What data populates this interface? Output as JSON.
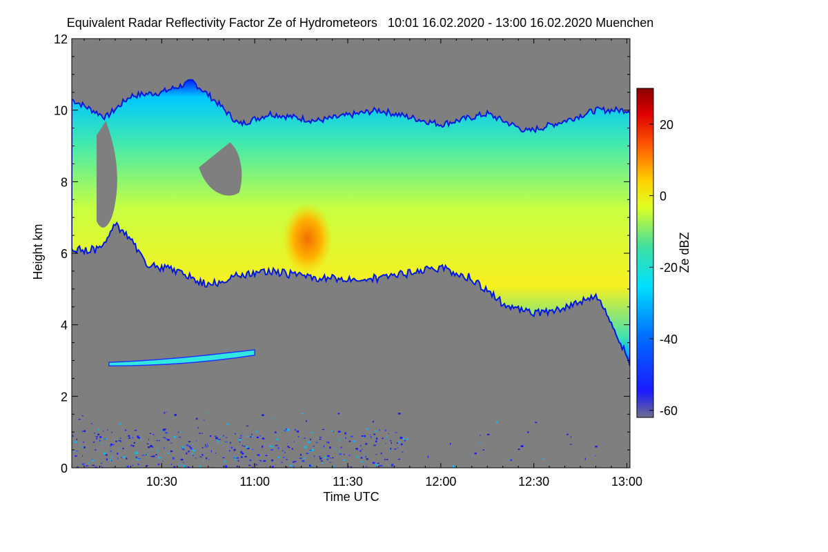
{
  "chart_data": {
    "type": "heatmap",
    "title": "Equivalent Radar Reflectivity Factor Ze of Hydrometeors   10:01 16.02.2020 - 13:00 16.02.2020 Muenchen",
    "xlabel": "Time UTC",
    "ylabel": "Height km",
    "xlim_minutes": [
      601,
      781
    ],
    "ylim": [
      0,
      12
    ],
    "x_ticks": [
      {
        "value": 630,
        "label": "10:30"
      },
      {
        "value": 660,
        "label": "11:00"
      },
      {
        "value": 690,
        "label": "11:30"
      },
      {
        "value": 720,
        "label": "12:00"
      },
      {
        "value": 750,
        "label": "12:30"
      },
      {
        "value": 780,
        "label": "13:00"
      }
    ],
    "y_ticks": [
      {
        "value": 0,
        "label": "0"
      },
      {
        "value": 2,
        "label": "2"
      },
      {
        "value": 4,
        "label": "4"
      },
      {
        "value": 6,
        "label": "6"
      },
      {
        "value": 8,
        "label": "8"
      },
      {
        "value": 10,
        "label": "10"
      },
      {
        "value": 12,
        "label": "12"
      }
    ],
    "background_color": "#7f7f7f",
    "colorbar": {
      "label": "Ze dBZ",
      "range": [
        -62,
        30
      ],
      "ticks": [
        {
          "value": 20,
          "label": "20"
        },
        {
          "value": 0,
          "label": "0"
        },
        {
          "value": -20,
          "label": "-20"
        },
        {
          "value": -40,
          "label": "-40"
        },
        {
          "value": -60,
          "label": "-60"
        }
      ],
      "colors": [
        "#6e6e8c",
        "#1a1aff",
        "#0060ff",
        "#00d8ff",
        "#40e0a0",
        "#e0ff20",
        "#ffd000",
        "#ff6000",
        "#e00000",
        "#8b0000"
      ]
    },
    "cloud_layer": {
      "description_values": "upper cloud band approx. 5.5-10.5 km, Ze mostly -30 to 0 dBZ, max ~5 dBZ near 11:15-11:20 at ~6 km",
      "top_km": [
        [
          601,
          10.3
        ],
        [
          612,
          9.8
        ],
        [
          620,
          10.4
        ],
        [
          630,
          10.5
        ],
        [
          640,
          10.8
        ],
        [
          648,
          10.2
        ],
        [
          655,
          9.6
        ],
        [
          665,
          9.9
        ],
        [
          680,
          9.7
        ],
        [
          700,
          10.0
        ],
        [
          720,
          9.6
        ],
        [
          735,
          9.9
        ],
        [
          748,
          9.4
        ],
        [
          760,
          9.7
        ],
        [
          770,
          10.0
        ],
        [
          781,
          10.0
        ]
      ],
      "base_km": [
        [
          601,
          6.1
        ],
        [
          610,
          6.1
        ],
        [
          615,
          6.8
        ],
        [
          620,
          6.4
        ],
        [
          625,
          5.7
        ],
        [
          635,
          5.5
        ],
        [
          645,
          5.1
        ],
        [
          655,
          5.4
        ],
        [
          665,
          5.5
        ],
        [
          680,
          5.3
        ],
        [
          700,
          5.3
        ],
        [
          720,
          5.6
        ],
        [
          730,
          5.3
        ],
        [
          740,
          4.6
        ],
        [
          750,
          4.3
        ],
        [
          760,
          4.5
        ],
        [
          770,
          4.8
        ],
        [
          775,
          4.1
        ],
        [
          781,
          2.9
        ]
      ],
      "core_max_dBZ": 5
    },
    "thin_layer": {
      "start_min": 613,
      "end_min": 660,
      "height_km": [
        2.9,
        3.3
      ],
      "Ze_dBZ": -28
    },
    "near_surface_clutter": {
      "height_km": [
        0,
        1.6
      ],
      "Ze_dBZ": [
        -45,
        -30
      ]
    }
  }
}
